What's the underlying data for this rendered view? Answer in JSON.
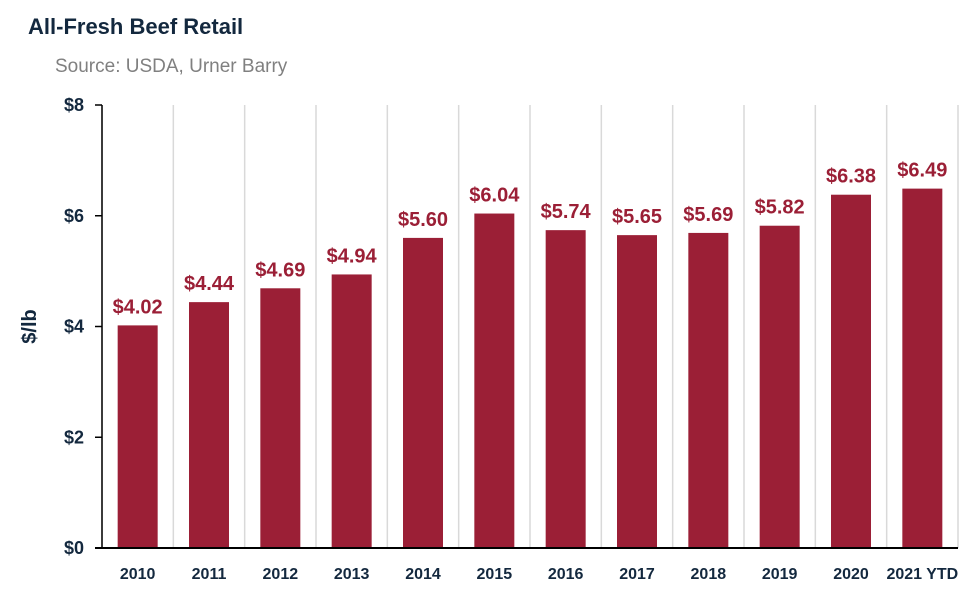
{
  "chart_data": {
    "type": "bar",
    "title": "All-Fresh Beef Retail",
    "subtitle": "Source: USDA, Urner Barry",
    "xlabel": "",
    "ylabel": "$/lb",
    "categories": [
      "2010",
      "2011",
      "2012",
      "2013",
      "2014",
      "2015",
      "2016",
      "2017",
      "2018",
      "2019",
      "2020",
      "2021 YTD"
    ],
    "values": [
      4.02,
      4.44,
      4.69,
      4.94,
      5.6,
      6.04,
      5.74,
      5.65,
      5.69,
      5.82,
      6.38,
      6.49
    ],
    "data_labels": [
      "$4.02",
      "$4.44",
      "$4.69",
      "$4.94",
      "$5.60",
      "$6.04",
      "$5.74",
      "$5.65",
      "$5.69",
      "$5.82",
      "$6.38",
      "$6.49"
    ],
    "ylim": [
      0,
      8
    ],
    "yticks": [
      0,
      2,
      4,
      6,
      8
    ],
    "ytick_labels": [
      "$0",
      "$2",
      "$4",
      "$6",
      "$8"
    ],
    "grid": "vertical",
    "legend": "none",
    "bar_color": "#9b1f36",
    "label_color": "#9b1f36",
    "text_color": "#13283e",
    "grid_color": "#d9d9d9"
  }
}
